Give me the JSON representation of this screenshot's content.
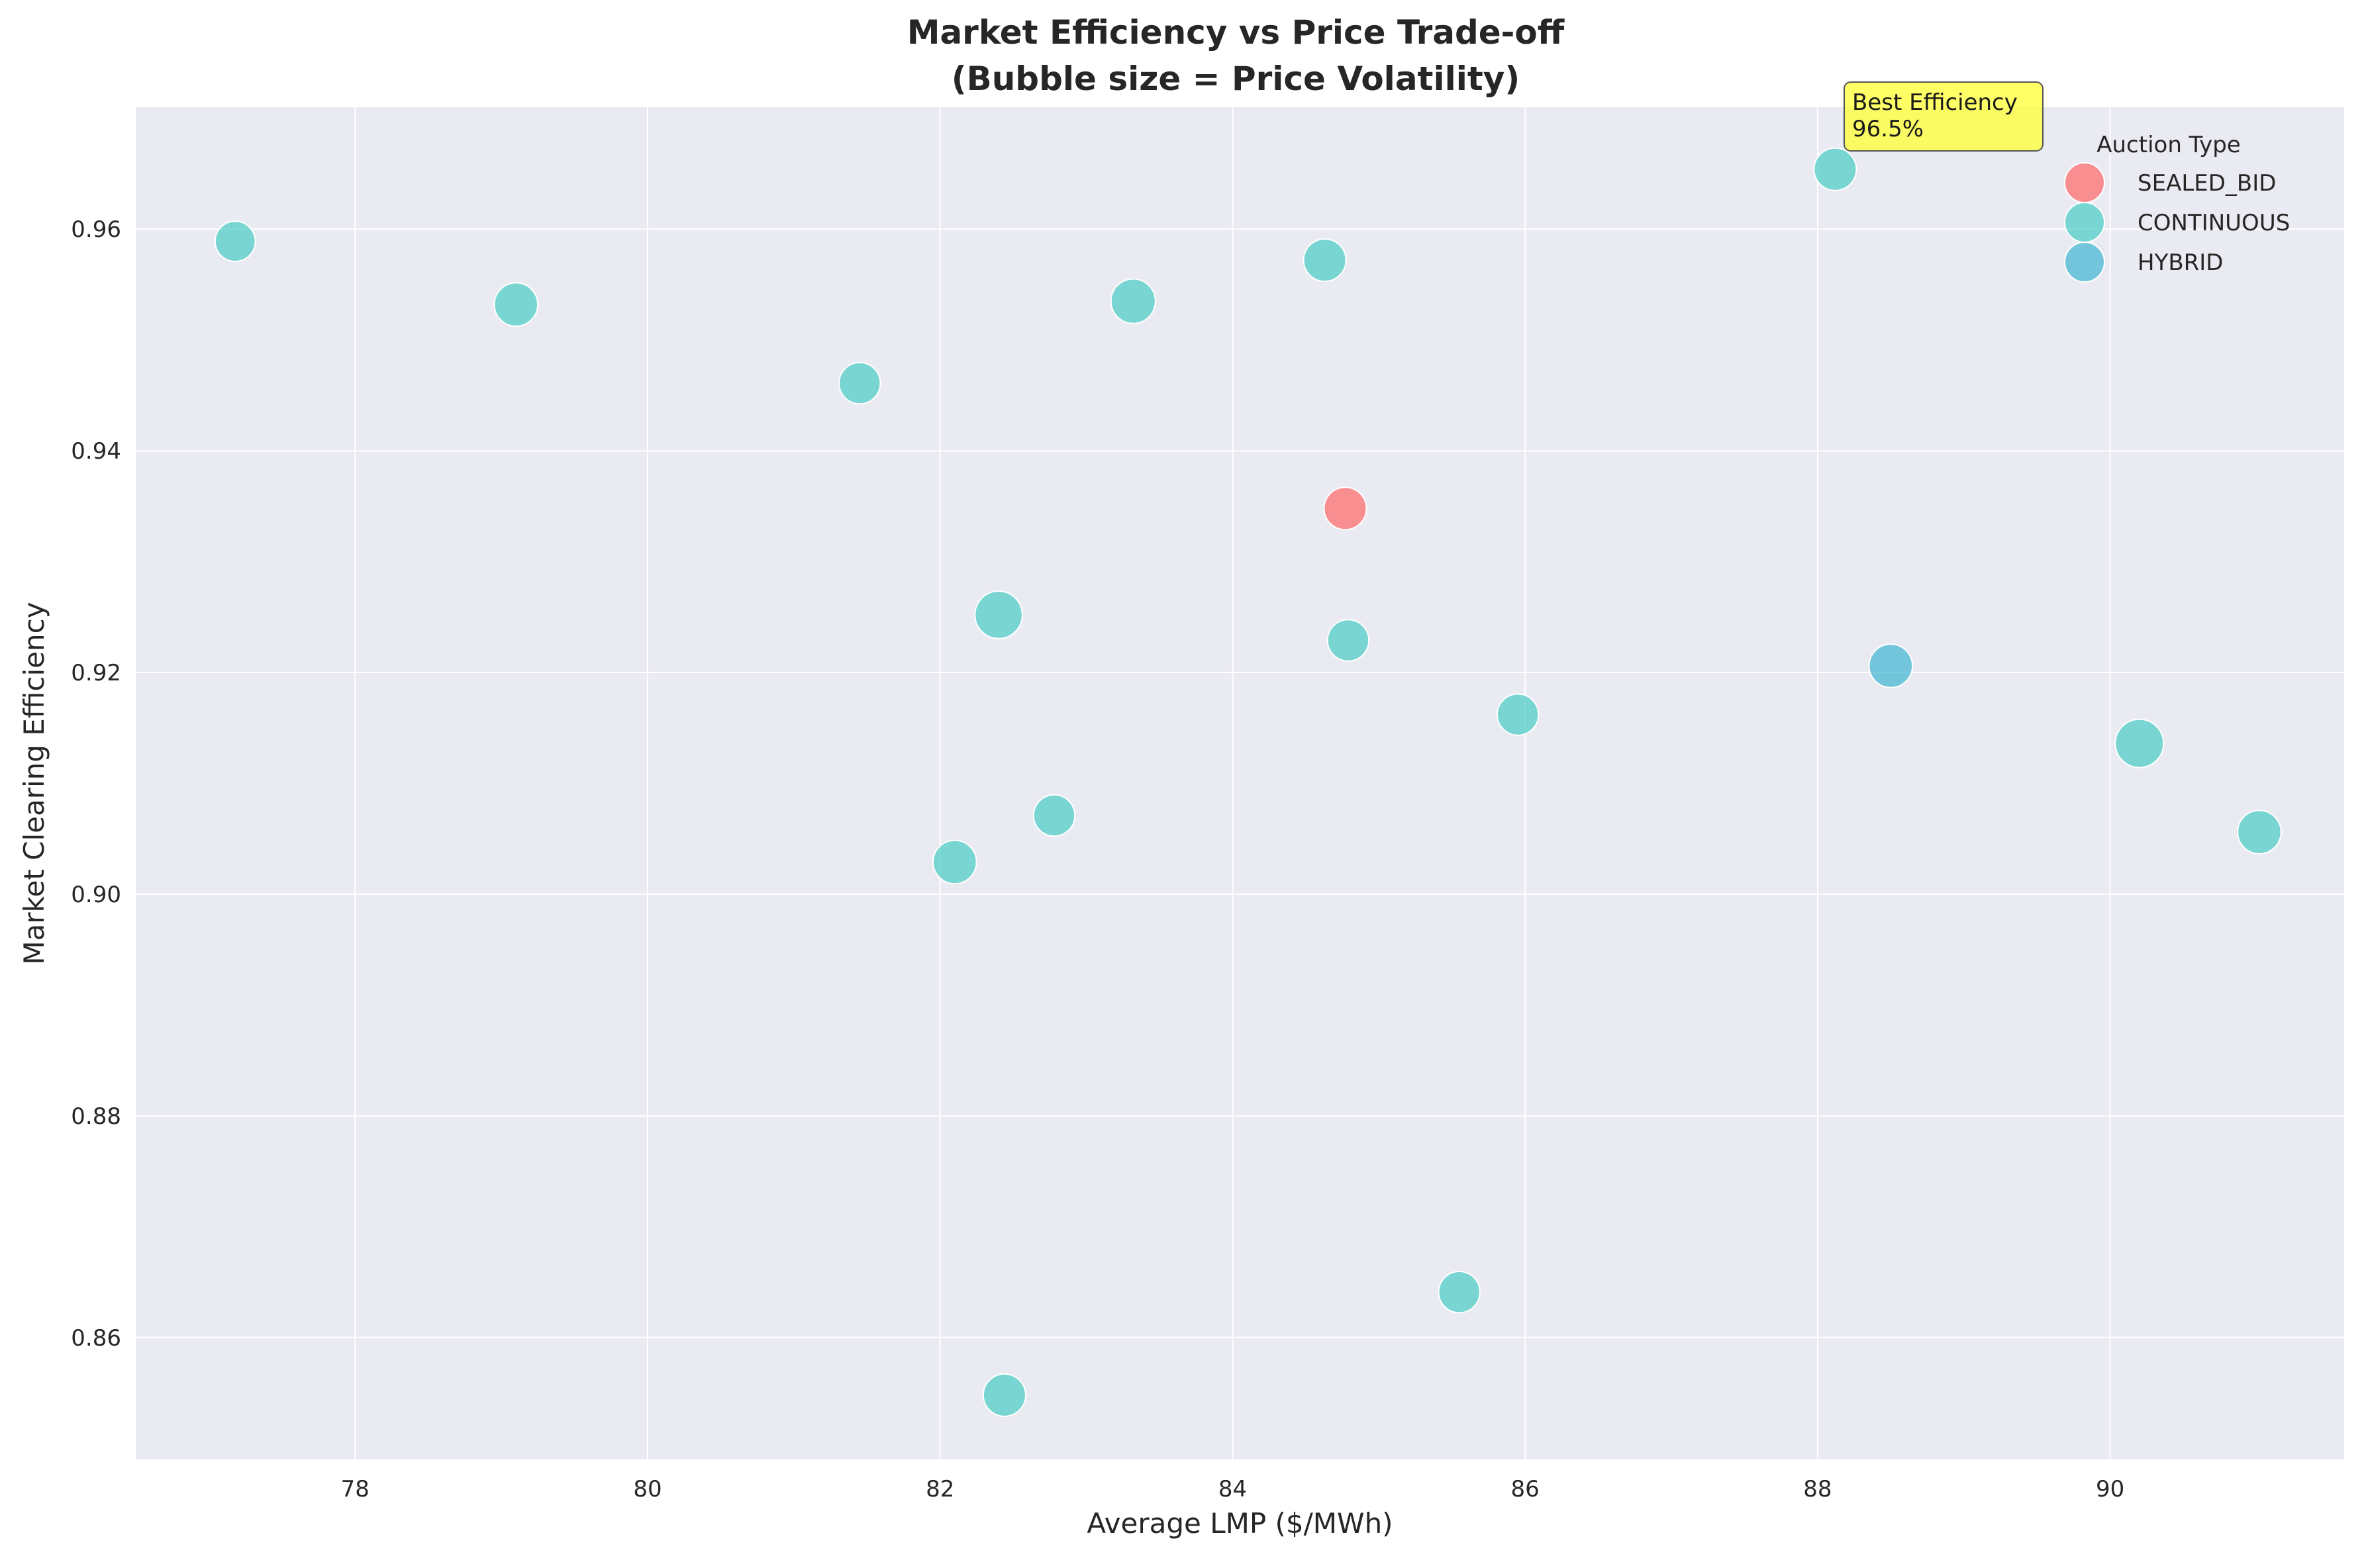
{
  "chart_data": {
    "type": "scatter",
    "title_lines": [
      "Market Efficiency vs Price Trade-off",
      "(Bubble size = Price Volatility)"
    ],
    "xlabel": "Average LMP ($/MWh)",
    "ylabel": "Market Clearing Efficiency",
    "xlim": [
      76.5,
      91.6
    ],
    "ylim": [
      0.849,
      0.971
    ],
    "x_ticks": [
      78,
      80,
      82,
      84,
      86,
      88,
      90
    ],
    "x_tick_labels": [
      "78",
      "80",
      "82",
      "84",
      "86",
      "88",
      "90"
    ],
    "y_ticks": [
      0.86,
      0.88,
      0.9,
      0.92,
      0.94,
      0.96
    ],
    "y_tick_labels": [
      "0.86",
      "0.88",
      "0.90",
      "0.92",
      "0.94",
      "0.96"
    ],
    "grid": true,
    "legend": {
      "title": "Auction Type",
      "placement": "top-right",
      "entries": [
        "SEALED_BID",
        "CONTINUOUS",
        "HYBRID"
      ]
    },
    "series": [
      {
        "name": "SEALED_BID",
        "color": "#FF6B6B",
        "points": [
          {
            "x": 84.77,
            "y": 0.9348,
            "volatility": 1.0
          }
        ]
      },
      {
        "name": "CONTINUOUS",
        "color": "#4ECDC4",
        "points": [
          {
            "x": 77.18,
            "y": 0.9589,
            "volatility": 0.9
          },
          {
            "x": 79.1,
            "y": 0.9532,
            "volatility": 1.05
          },
          {
            "x": 81.45,
            "y": 0.9461,
            "volatility": 0.95
          },
          {
            "x": 83.32,
            "y": 0.9535,
            "volatility": 1.1
          },
          {
            "x": 84.63,
            "y": 0.9572,
            "volatility": 1.0
          },
          {
            "x": 88.12,
            "y": 0.9654,
            "volatility": 1.0
          },
          {
            "x": 82.4,
            "y": 0.9252,
            "volatility": 1.25
          },
          {
            "x": 84.79,
            "y": 0.9229,
            "volatility": 0.95
          },
          {
            "x": 85.95,
            "y": 0.9162,
            "volatility": 0.95
          },
          {
            "x": 90.2,
            "y": 0.9136,
            "volatility": 1.3
          },
          {
            "x": 91.02,
            "y": 0.9056,
            "volatility": 1.05
          },
          {
            "x": 82.78,
            "y": 0.9071,
            "volatility": 0.95
          },
          {
            "x": 82.1,
            "y": 0.9029,
            "volatility": 1.05
          },
          {
            "x": 85.55,
            "y": 0.8641,
            "volatility": 0.95
          },
          {
            "x": 82.44,
            "y": 0.8548,
            "volatility": 1.0
          }
        ]
      },
      {
        "name": "HYBRID",
        "color": "#45B7D1",
        "points": [
          {
            "x": 88.5,
            "y": 0.9206,
            "volatility": 1.05
          }
        ]
      }
    ],
    "annotation": {
      "lines": [
        "Best Efficiency",
        "96.5%"
      ],
      "target": {
        "x": 88.12,
        "y": 0.9654
      },
      "box_color": "#FFFF33"
    }
  }
}
